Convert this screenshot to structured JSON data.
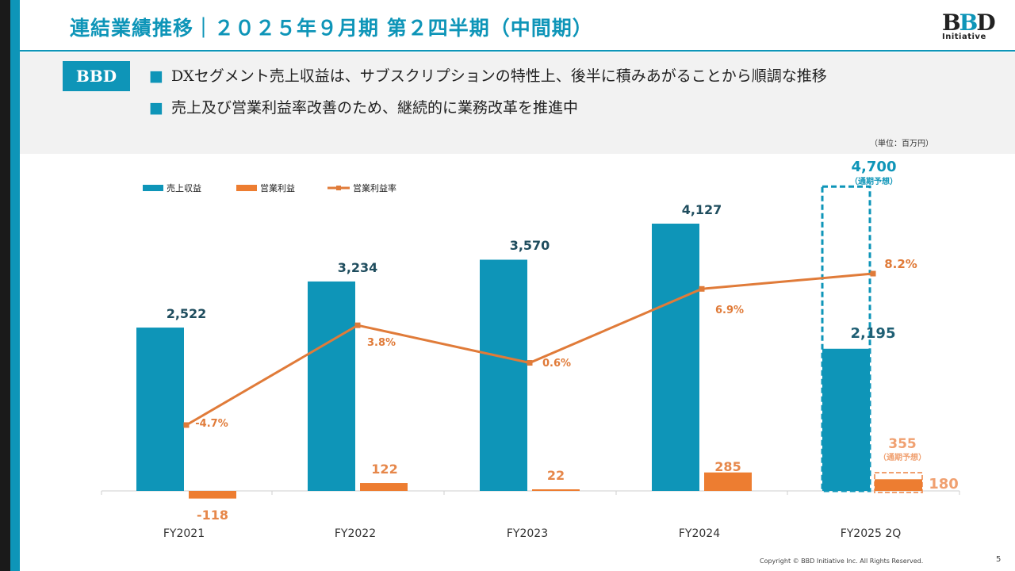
{
  "header": {
    "title": "連結業績推移｜２０２５年９月期 第２四半期（中間期）",
    "logo_main": "BBD",
    "logo_sub": "Initiative"
  },
  "summary": {
    "tag": "BBD",
    "bullets": [
      "DXセグメント売上収益は、サブスクリプションの特性上、後半に積みあがることから順調な推移",
      "売上及び営業利益率改善のため、継続的に業務改革を推進中"
    ]
  },
  "unit_note": "（単位：百万円）",
  "colors": {
    "revenue": "#0e95b8",
    "profit": "#ed7d31",
    "margin": "#e07b39",
    "accent": "#0e95b8"
  },
  "chart_data": {
    "type": "bar",
    "categories": [
      "FY2021",
      "FY2022",
      "FY2023",
      "FY2024",
      "FY2025 2Q"
    ],
    "legend": [
      "売上収益",
      "営業利益",
      "営業利益率"
    ],
    "series": [
      {
        "name": "売上収益",
        "values": [
          2522,
          3234,
          3570,
          4127,
          2195
        ],
        "labels": [
          "2,522",
          "3,234",
          "3,570",
          "4,127",
          "2,195"
        ],
        "forecast": 4700,
        "forecast_label": "4,700",
        "forecast_note": "（通期予想）"
      },
      {
        "name": "営業利益",
        "values": [
          -118,
          122,
          22,
          285,
          180
        ],
        "labels": [
          "-118",
          "122",
          "22",
          "285",
          "180"
        ],
        "forecast": 355,
        "forecast_label": "355",
        "forecast_note": "（通期予想）"
      },
      {
        "name": "営業利益率",
        "type": "line",
        "values": [
          -4.7,
          3.8,
          0.6,
          6.9,
          8.2
        ],
        "labels": [
          "-4.7%",
          "3.8%",
          "0.6%",
          "6.9%",
          "8.2%"
        ]
      }
    ],
    "legend_position": "top-left"
  },
  "footer": {
    "copyright": "Copyright © BBD Initiative Inc. All Rights Reserved.",
    "page": "5"
  }
}
